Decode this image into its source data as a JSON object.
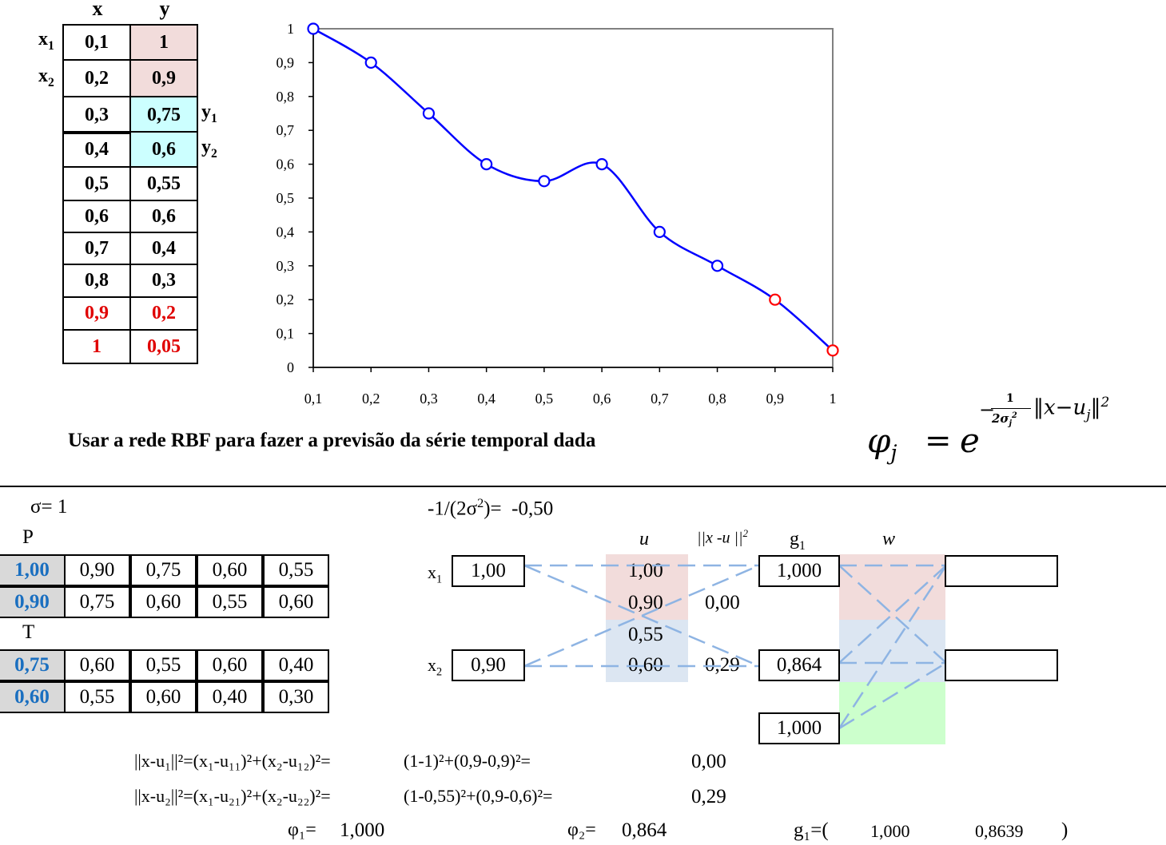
{
  "table": {
    "headers": [
      "x",
      "y"
    ],
    "rows": [
      {
        "x": "0,1",
        "y": "1"
      },
      {
        "x": "0,2",
        "y": "0,9"
      },
      {
        "x": "0,3",
        "y": "0,75"
      },
      {
        "x": "0,4",
        "y": "0,6"
      },
      {
        "x": "0,5",
        "y": "0,55"
      },
      {
        "x": "0,6",
        "y": "0,6"
      },
      {
        "x": "0,7",
        "y": "0,4"
      },
      {
        "x": "0,8",
        "y": "0,3"
      },
      {
        "x": "0,9",
        "y": "0,2"
      },
      {
        "x": "1",
        "y": "0,05"
      }
    ],
    "row_labels_left": [
      {
        "base": "x",
        "sub": "1"
      },
      {
        "base": "x",
        "sub": "2"
      }
    ],
    "row_labels_right": [
      {
        "base": "y",
        "sub": "1"
      },
      {
        "base": "y",
        "sub": "2"
      }
    ],
    "colors": {
      "pink": "#f2dcdb",
      "cyan": "#ccffff",
      "red": "#e00000"
    }
  },
  "chart_data": {
    "type": "line",
    "x": [
      0.1,
      0.2,
      0.3,
      0.4,
      0.5,
      0.6,
      0.7,
      0.8,
      0.9,
      1.0
    ],
    "series": [
      {
        "values": [
          1,
          0.9,
          0.75,
          0.6,
          0.55,
          0.6,
          0.4,
          0.3,
          0.2,
          0.05
        ]
      }
    ],
    "xticks": [
      "0,1",
      "0,2",
      "0,3",
      "0,4",
      "0,5",
      "0,6",
      "0,7",
      "0,8",
      "0,9",
      "1"
    ],
    "yticks": [
      "0",
      "0,1",
      "0,2",
      "0,3",
      "0,4",
      "0,5",
      "0,6",
      "0,7",
      "0,8",
      "0,9",
      "1"
    ],
    "xlim": [
      0.1,
      1.0
    ],
    "ylim": [
      0,
      1
    ],
    "line_color": "#0000ff",
    "highlight_color": "#ff0000",
    "highlight_points": [
      0.9,
      1.0
    ],
    "title": "",
    "xlabel": "",
    "ylabel": ""
  },
  "caption": "Usar a rede RBF para fazer a previsão da série temporal dada",
  "formula": {
    "lhs": "φ",
    "lhs_sub": "j",
    "eq": "=",
    "base": "e",
    "minus": "−",
    "num": "1",
    "den_pre": "2σ",
    "den_sub": "j",
    "den_sup": "2",
    "norm_inner": "x−u",
    "norm_sub": "j",
    "norm_sup": "2"
  },
  "sigma": {
    "label": "σ=",
    "value": "1"
  },
  "coef": {
    "pre": "-1/(2σ",
    "sup": "2",
    "post": ")=",
    "value": "-0,50"
  },
  "P": {
    "label": "P",
    "rows": [
      [
        "1,00",
        "0,90",
        "0,75",
        "0,60",
        "0,55"
      ],
      [
        "0,90",
        "0,75",
        "0,60",
        "0,55",
        "0,60"
      ]
    ]
  },
  "T": {
    "label": "T",
    "rows": [
      [
        "0,75",
        "0,60",
        "0,55",
        "0,60",
        "0,40"
      ],
      [
        "0,60",
        "0,55",
        "0,60",
        "0,40",
        "0,30"
      ]
    ]
  },
  "network": {
    "inputs": [
      {
        "label": "x",
        "sub": "1",
        "value": "1,00"
      },
      {
        "label": "x",
        "sub": "2",
        "value": "0,90"
      }
    ],
    "u_header": "u",
    "u_values": [
      "1,00",
      "0,90",
      "0,55",
      "0,60"
    ],
    "dist_header": {
      "pre": "||x -u ||",
      "sup": "2"
    },
    "dist_values": [
      "0,00",
      "0,29"
    ],
    "g_header": {
      "base": "g",
      "sub": "1"
    },
    "g_values": [
      "1,000",
      "0,864",
      "1,000"
    ],
    "w_header": "w",
    "colors": {
      "pink": "#f2dcdb",
      "lightblue": "#dce6f2",
      "green": "#ccffcc",
      "dash": "#8eb4e3"
    }
  },
  "eqs": {
    "line1": {
      "lhs": "||x-u₁||²=(x₁-u₁₁)²+(x₂-u₁₂)²=",
      "mid": "(1-1)²+(0,9-0,9)²=",
      "result": "0,00"
    },
    "line2": {
      "lhs": "||x-u₂||²=(x₁-u₂₁)²+(x₂-u₂₂)²=",
      "mid": "(1-0,55)²+(0,9-0,6)²=",
      "result": "0,29"
    }
  },
  "phi": {
    "phi1_label": "φ₁=",
    "phi1": "1,000",
    "phi2_label": "φ₂=",
    "phi2": "0,864",
    "g1_label": "g₁=(",
    "g1_a": "1,000",
    "g1_b": "0,8639",
    "g1_close": ")"
  }
}
